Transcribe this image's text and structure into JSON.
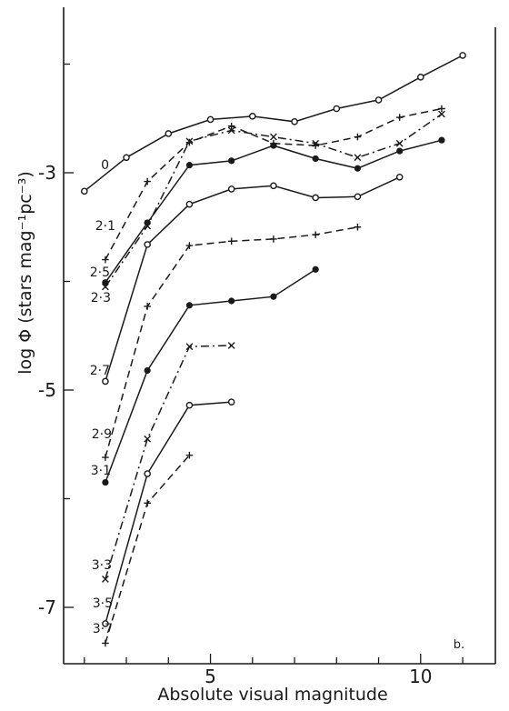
{
  "chart_data": {
    "type": "line",
    "xlabel": "Absolute visual magnitude",
    "ylabel": "log Φ (stars mag⁻¹pc⁻³)",
    "panel_label": "b.",
    "xlim": [
      1.3,
      11.5
    ],
    "ylim": [
      -7.6,
      -1.3
    ],
    "x_ticks": [
      {
        "value": 5,
        "label": "5"
      },
      {
        "value": 10,
        "label": "10"
      }
    ],
    "x_minor_ticks": [
      2,
      3,
      4,
      6,
      7,
      8,
      9,
      11
    ],
    "y_ticks": [
      {
        "value": -3,
        "label": "-3"
      },
      {
        "value": -5,
        "label": "-5"
      },
      {
        "value": -7,
        "label": "-7"
      }
    ],
    "y_minor_ticks": [
      -2,
      -4,
      -6
    ],
    "series": [
      {
        "name": "0",
        "line": "solid",
        "marker": "open-circle",
        "x": [
          2.0,
          3.0,
          4.0,
          5.0,
          6.0,
          7.0,
          8.0,
          9.0,
          10.0,
          11.0
        ],
        "y": [
          -3.17,
          -2.86,
          -2.64,
          -2.51,
          -2.48,
          -2.53,
          -2.41,
          -2.33,
          -2.12,
          -1.92
        ]
      },
      {
        "name": "2·1",
        "line": "dashed",
        "marker": "plus",
        "x": [
          2.5,
          3.5,
          4.5,
          5.5,
          6.5,
          7.5,
          8.5,
          9.5,
          10.5
        ],
        "y": [
          -3.8,
          -3.08,
          -2.72,
          -2.57,
          -2.73,
          -2.75,
          -2.67,
          -2.49,
          -2.41
        ]
      },
      {
        "name": "2·3",
        "line": "dash-dot",
        "marker": "cross",
        "x": [
          2.5,
          3.5,
          4.5,
          5.5,
          6.5,
          7.5,
          8.5,
          9.5,
          10.5
        ],
        "y": [
          -4.05,
          -3.49,
          -2.71,
          -2.61,
          -2.67,
          -2.73,
          -2.86,
          -2.73,
          -2.46
        ]
      },
      {
        "name": "2·5",
        "line": "solid",
        "marker": "filled-circle",
        "x": [
          2.5,
          3.5,
          4.5,
          5.5,
          6.5,
          7.5,
          8.5,
          9.5,
          10.5
        ],
        "y": [
          -4.01,
          -3.46,
          -2.93,
          -2.89,
          -2.75,
          -2.87,
          -2.96,
          -2.8,
          -2.7
        ]
      },
      {
        "name": "2·7",
        "line": "solid",
        "marker": "open-circle",
        "x": [
          2.5,
          3.5,
          4.5,
          5.5,
          6.5,
          7.5,
          8.5,
          9.5
        ],
        "y": [
          -4.92,
          -3.66,
          -3.29,
          -3.15,
          -3.12,
          -3.23,
          -3.22,
          -3.04
        ]
      },
      {
        "name": "2·9",
        "line": "dashed",
        "marker": "plus",
        "x": [
          2.5,
          3.5,
          4.5,
          5.5,
          6.5,
          7.5,
          8.5
        ],
        "y": [
          -5.62,
          -4.23,
          -3.67,
          -3.63,
          -3.61,
          -3.57,
          -3.5
        ]
      },
      {
        "name": "3·1",
        "line": "solid",
        "marker": "filled-circle",
        "x": [
          2.5,
          3.5,
          4.5,
          5.5,
          6.5,
          7.5
        ],
        "y": [
          -5.85,
          -4.82,
          -4.22,
          -4.18,
          -4.14,
          -3.89
        ]
      },
      {
        "name": "3·3",
        "line": "dash-dot",
        "marker": "cross",
        "x": [
          2.5,
          3.5,
          4.5,
          5.5
        ],
        "y": [
          -6.74,
          -5.45,
          -4.6,
          -4.59
        ]
      },
      {
        "name": "3·5",
        "line": "solid",
        "marker": "open-circle",
        "x": [
          2.5,
          3.5,
          4.5,
          5.5
        ],
        "y": [
          -7.15,
          -5.77,
          -5.14,
          -5.11
        ]
      },
      {
        "name": "3·7",
        "line": "dashed",
        "marker": "plus",
        "x": [
          2.5,
          3.5,
          4.5
        ],
        "y": [
          -7.33,
          -6.04,
          -5.6
        ]
      }
    ]
  }
}
